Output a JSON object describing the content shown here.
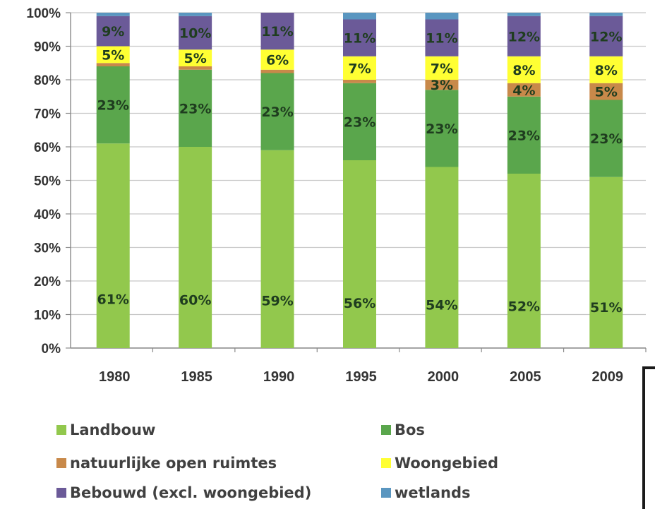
{
  "chart_data": {
    "type": "bar",
    "stacked": true,
    "percent_scale": true,
    "categories": [
      "1980",
      "1985",
      "1990",
      "1995",
      "2000",
      "2005",
      "2009"
    ],
    "ylim": [
      0,
      100
    ],
    "yticks": [
      "0%",
      "10%",
      "20%",
      "30%",
      "40%",
      "50%",
      "60%",
      "70%",
      "80%",
      "90%",
      "100%"
    ],
    "grid": true,
    "legend_position": "bottom",
    "series": [
      {
        "name": "Landbouw",
        "color": "#92c84d",
        "values": [
          61,
          60,
          59,
          56,
          54,
          52,
          51
        ]
      },
      {
        "name": "Bos",
        "color": "#5aa64c",
        "values": [
          23,
          23,
          23,
          23,
          23,
          23,
          23
        ]
      },
      {
        "name": "natuurlijke open ruimtes",
        "color": "#c8894a",
        "values": [
          1,
          1,
          1,
          1,
          3,
          4,
          5
        ]
      },
      {
        "name": "Woongebied",
        "color": "#ffff33",
        "values": [
          5,
          5,
          6,
          7,
          7,
          8,
          8
        ]
      },
      {
        "name": "Bebouwd (excl. woongebied)",
        "color": "#6b5a98",
        "values": [
          9,
          10,
          11,
          11,
          11,
          12,
          12
        ]
      },
      {
        "name": "wetlands",
        "color": "#5a96c0",
        "values": [
          1,
          1,
          0,
          2,
          2,
          1,
          1
        ]
      }
    ],
    "data_labels": [
      [
        "61%",
        "23%",
        "",
        "5%",
        "9%",
        ""
      ],
      [
        "60%",
        "23%",
        "",
        "5%",
        "10%",
        ""
      ],
      [
        "59%",
        "23%",
        "",
        "6%",
        "11%",
        ""
      ],
      [
        "56%",
        "23%",
        "",
        "7%",
        "11%",
        ""
      ],
      [
        "54%",
        "23%",
        "3%",
        "7%",
        "11%",
        ""
      ],
      [
        "52%",
        "23%",
        "4%",
        "8%",
        "12%",
        ""
      ],
      [
        "51%",
        "23%",
        "5%",
        "8%",
        "12%",
        ""
      ]
    ],
    "legend_order": [
      0,
      1,
      2,
      3,
      4,
      5
    ]
  }
}
